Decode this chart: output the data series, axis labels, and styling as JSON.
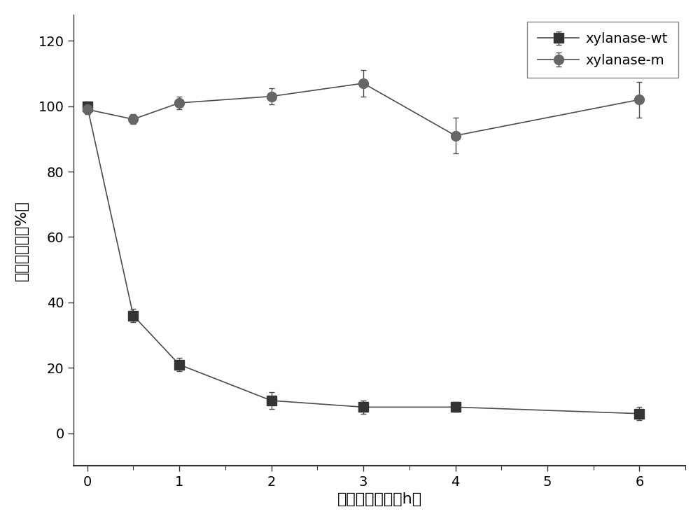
{
  "wt_x": [
    0,
    0.5,
    1,
    2,
    3,
    4,
    6
  ],
  "wt_y": [
    100,
    36,
    21,
    10,
    8,
    8,
    6
  ],
  "wt_yerr": [
    1.5,
    2.0,
    2.0,
    2.5,
    2.0,
    1.5,
    2.0
  ],
  "m_x": [
    0,
    0.5,
    1,
    2,
    3,
    4,
    6
  ],
  "m_y": [
    99,
    96,
    101,
    103,
    107,
    91,
    102
  ],
  "m_yerr": [
    1.5,
    1.5,
    2.0,
    2.5,
    4.0,
    5.5,
    5.5
  ],
  "xlabel": "酶热处理时间（h）",
  "ylabel": "相对酶活力（%）",
  "legend_wt": "xylanase-wt",
  "legend_m": "xylanase-m",
  "xlim": [
    -0.15,
    6.5
  ],
  "ylim": [
    -10,
    128
  ],
  "yticks": [
    0,
    20,
    40,
    60,
    80,
    100,
    120
  ],
  "xticks": [
    0,
    1,
    2,
    3,
    4,
    5,
    6
  ],
  "line_color": "#4d4d4d",
  "marker_color_wt": "#333333",
  "marker_color_m": "#666666",
  "bg_color": "#ffffff",
  "marker_size": 10,
  "linewidth": 1.2,
  "capsize": 3,
  "legend_fontsize": 14,
  "tick_labelsize": 14,
  "axis_labelsize": 16
}
